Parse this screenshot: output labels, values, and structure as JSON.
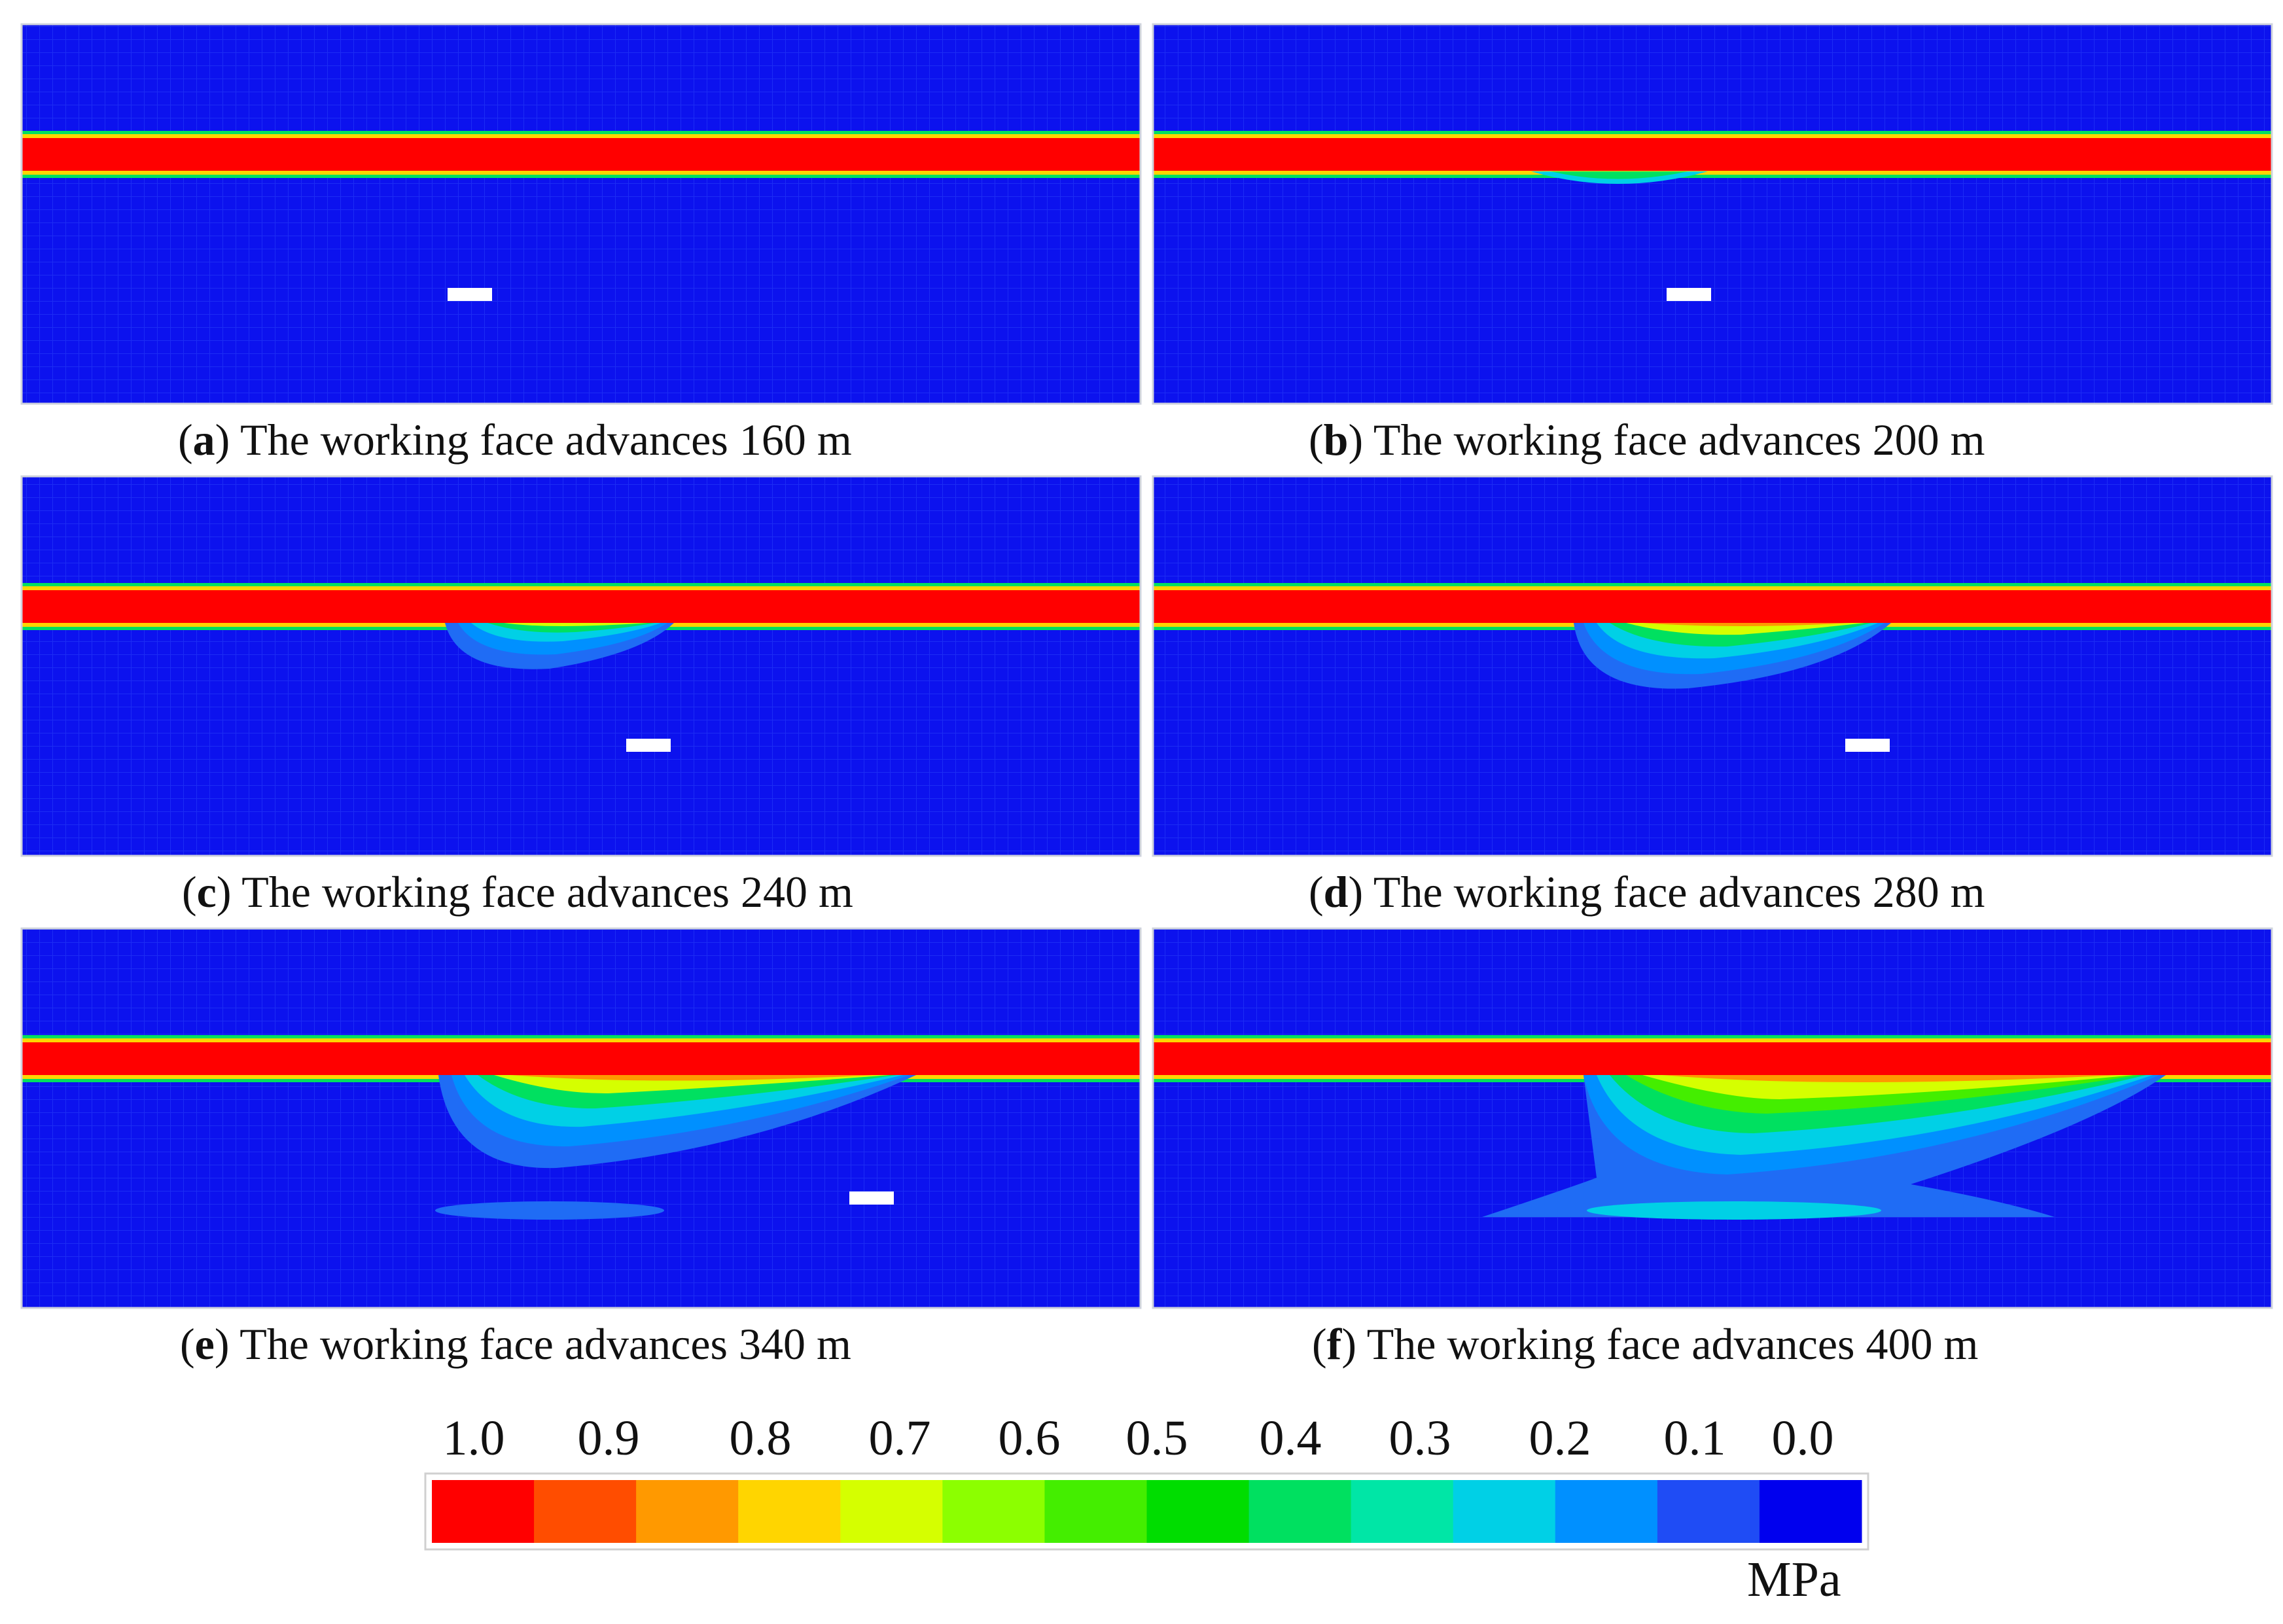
{
  "panels": [
    {
      "letter": "a",
      "caption": "The working face advances 160 m"
    },
    {
      "letter": "b",
      "caption": "The working face advances 200 m"
    },
    {
      "letter": "c",
      "caption": "The working face advances 240 m"
    },
    {
      "letter": "d",
      "caption": "The working face advances 280 m"
    },
    {
      "letter": "e",
      "caption": "The working face advances 340 m"
    },
    {
      "letter": "f",
      "caption": "The working face advances 400 m"
    }
  ],
  "colorbar": {
    "tick_labels": [
      "1.0",
      "0.9",
      "0.8",
      "0.7",
      "0.6",
      "0.5",
      "0.4",
      "0.3",
      "0.2",
      "0.1",
      "0.0"
    ],
    "unit": "MPa",
    "colors": [
      "#ff0000",
      "#ff4d00",
      "#ff9900",
      "#ffd500",
      "#d5ff00",
      "#8cff00",
      "#44ee00",
      "#00dd00",
      "#00e060",
      "#00e6a6",
      "#00d0e6",
      "#0090ff",
      "#1f4cf5",
      "#0000ee"
    ]
  },
  "colors": {
    "background": "#0c12ee",
    "high_stress_band": "#ff0000",
    "roadway": "#ffffff"
  }
}
